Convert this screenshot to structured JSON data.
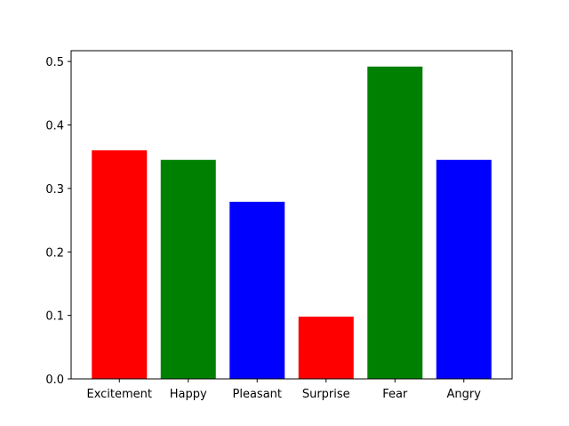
{
  "chart_data": {
    "type": "bar",
    "categories": [
      "Excitement",
      "Happy",
      "Pleasant",
      "Surprise",
      "Fear",
      "Angry"
    ],
    "values": [
      0.36,
      0.345,
      0.279,
      0.098,
      0.492,
      0.345
    ],
    "colors": [
      "#ff0000",
      "#008000",
      "#0000ff",
      "#ff0000",
      "#008000",
      "#0000ff"
    ],
    "title": "",
    "xlabel": "",
    "ylabel": "",
    "ylim": [
      0,
      0.517
    ],
    "yticks": [
      "0.0",
      "0.1",
      "0.2",
      "0.3",
      "0.4",
      "0.5"
    ],
    "grid": false
  }
}
